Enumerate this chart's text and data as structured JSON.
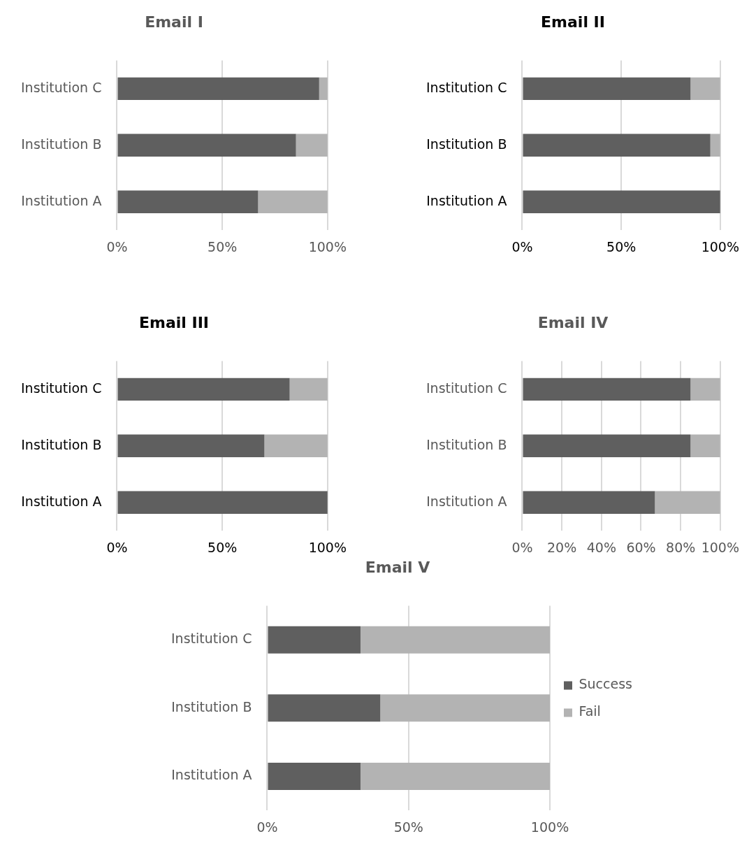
{
  "chart_data": [
    {
      "type": "bar",
      "orientation": "horizontal",
      "stacked": true,
      "title": "Email I",
      "categories": [
        "Institution C",
        "Institution B",
        "Institution A"
      ],
      "series": [
        {
          "color": "#5f5f5f",
          "values": [
            96,
            85,
            67
          ]
        },
        {
          "color": "#b3b3b3",
          "values": [
            4,
            15,
            33
          ]
        }
      ],
      "xlim": [
        0,
        100
      ],
      "xticks": [
        {
          "value": 0,
          "label": "0%"
        },
        {
          "value": 50,
          "label": "50%"
        },
        {
          "value": 100,
          "label": "100%"
        }
      ],
      "grid": "x",
      "legend": false
    },
    {
      "type": "bar",
      "orientation": "horizontal",
      "stacked": true,
      "title": "Email II",
      "categories": [
        "Institution C",
        "Institution B",
        "Institution A"
      ],
      "series": [
        {
          "color": "#5f5f5f",
          "values": [
            85,
            95,
            100
          ]
        },
        {
          "color": "#b3b3b3",
          "values": [
            15,
            5,
            0
          ]
        }
      ],
      "xlim": [
        0,
        100
      ],
      "xticks": [
        {
          "value": 0,
          "label": "0%"
        },
        {
          "value": 50,
          "label": "50%"
        },
        {
          "value": 100,
          "label": "100%"
        }
      ],
      "grid": "x",
      "legend": false
    },
    {
      "type": "bar",
      "orientation": "horizontal",
      "stacked": true,
      "title": "Email III",
      "categories": [
        "Institution C",
        "Institution B",
        "Institution A"
      ],
      "series": [
        {
          "color": "#5f5f5f",
          "values": [
            82,
            70,
            100
          ]
        },
        {
          "color": "#b3b3b3",
          "values": [
            18,
            30,
            0
          ]
        }
      ],
      "xlim": [
        0,
        100
      ],
      "xticks": [
        {
          "value": 0,
          "label": "0%"
        },
        {
          "value": 50,
          "label": "50%"
        },
        {
          "value": 100,
          "label": "100%"
        }
      ],
      "grid": "x",
      "legend": false
    },
    {
      "type": "bar",
      "orientation": "horizontal",
      "stacked": true,
      "title": "Email IV",
      "categories": [
        "Institution C",
        "Institution B",
        "Institution A"
      ],
      "series": [
        {
          "color": "#5f5f5f",
          "values": [
            85,
            85,
            67
          ]
        },
        {
          "color": "#b3b3b3",
          "values": [
            15,
            15,
            33
          ]
        }
      ],
      "xlim": [
        0,
        100
      ],
      "xticks": [
        {
          "value": 0,
          "label": "0%"
        },
        {
          "value": 20,
          "label": "20%"
        },
        {
          "value": 40,
          "label": "40%"
        },
        {
          "value": 60,
          "label": "60%"
        },
        {
          "value": 80,
          "label": "80%"
        },
        {
          "value": 100,
          "label": "100%"
        }
      ],
      "grid": "x",
      "legend": false
    },
    {
      "type": "bar",
      "orientation": "horizontal",
      "stacked": true,
      "title": "Email V",
      "categories": [
        "Institution C",
        "Institution B",
        "Institution A"
      ],
      "series": [
        {
          "name": "Success",
          "color": "#5f5f5f",
          "values": [
            33,
            40,
            33
          ]
        },
        {
          "name": "Fail",
          "color": "#b3b3b3",
          "values": [
            67,
            60,
            67
          ]
        }
      ],
      "xlim": [
        0,
        100
      ],
      "xticks": [
        {
          "value": 0,
          "label": "0%"
        },
        {
          "value": 50,
          "label": "50%"
        },
        {
          "value": 100,
          "label": "100%"
        }
      ],
      "grid": "x",
      "legend": "right"
    }
  ]
}
